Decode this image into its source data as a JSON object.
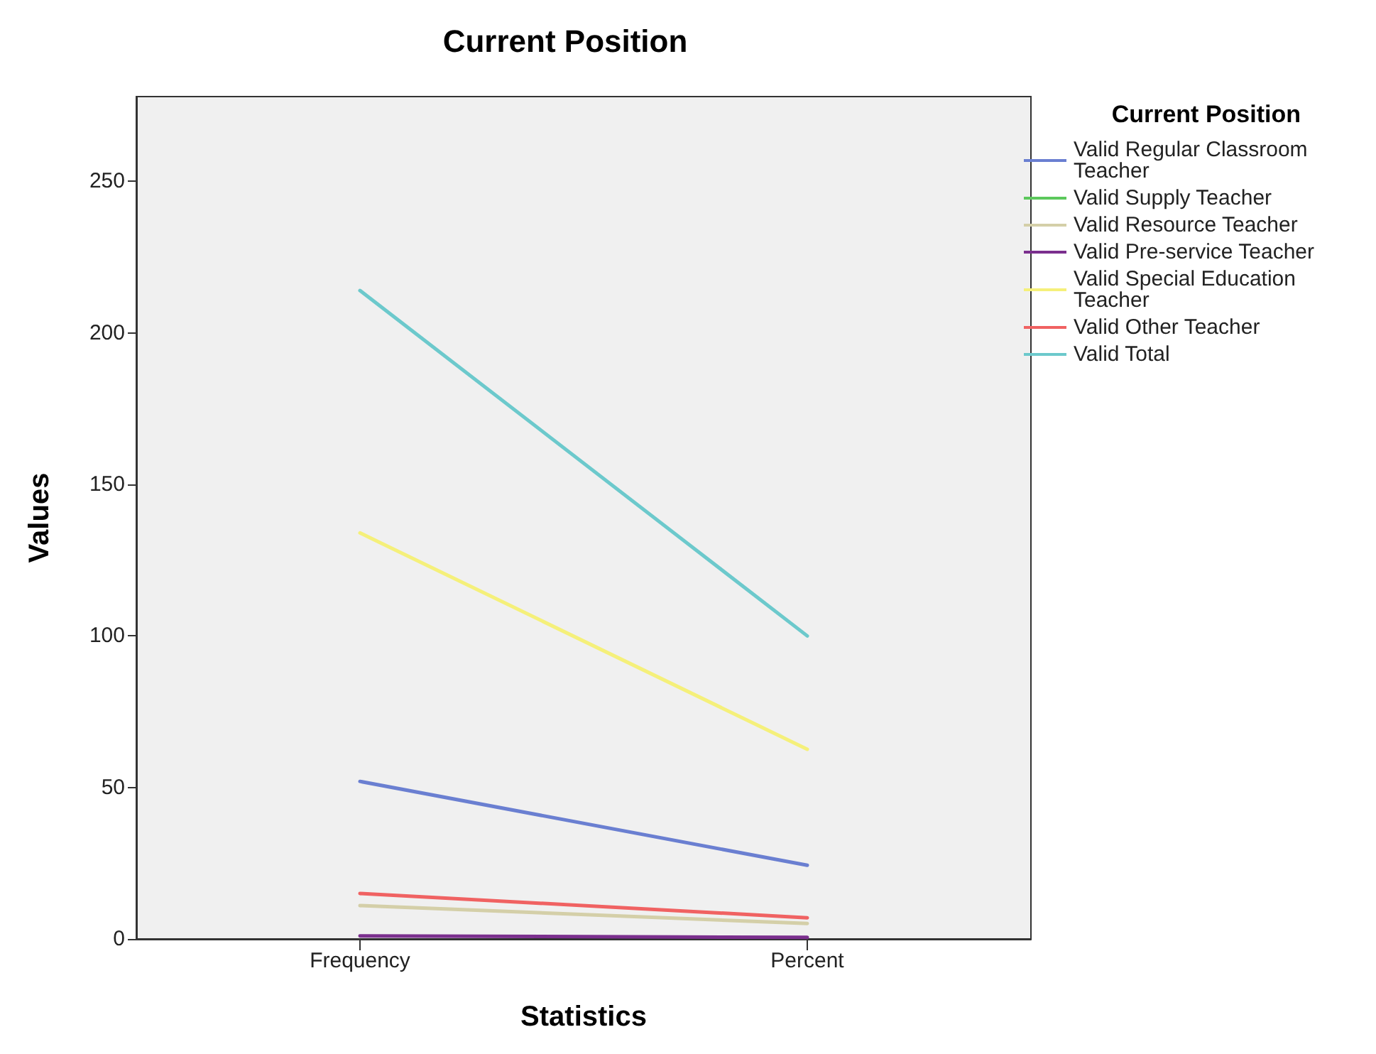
{
  "chart_data": {
    "type": "line",
    "title": "Current Position",
    "xlabel": "Statistics",
    "ylabel": "Values",
    "legend_title": "Current Position",
    "legend": "right",
    "grid": false,
    "marker": "none",
    "line_style": "solid",
    "categories": [
      "Frequency",
      "Percent"
    ],
    "ylim": [
      0,
      278
    ],
    "yticks": [
      0,
      50,
      100,
      150,
      200,
      250
    ],
    "series": [
      {
        "name": "Valid Regular Classroom Teacher",
        "color": "#6a7fd1",
        "values": [
          52,
          24.3
        ]
      },
      {
        "name": "Valid Supply Teacher",
        "color": "#5cc85c",
        "values": [
          null,
          null
        ]
      },
      {
        "name": "Valid Resource Teacher",
        "color": "#d4cfa8",
        "values": [
          11,
          5.1
        ]
      },
      {
        "name": "Valid Pre-service Teacher",
        "color": "#7b2f8e",
        "values": [
          1,
          0.5
        ]
      },
      {
        "name": "Valid Special Education Teacher",
        "color": "#f5f07a",
        "values": [
          134,
          62.6
        ]
      },
      {
        "name": "Valid Other Teacher",
        "color": "#f06262",
        "values": [
          15,
          7
        ]
      },
      {
        "name": "Valid Total",
        "color": "#6cc9cc",
        "values": [
          214,
          100
        ]
      }
    ]
  }
}
